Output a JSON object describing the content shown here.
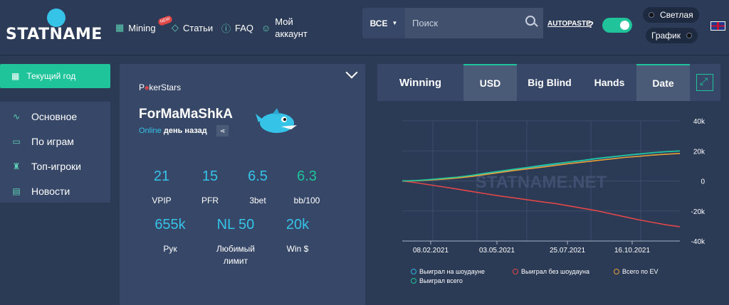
{
  "header": {
    "logo": "STATNAME",
    "nav": [
      {
        "label": "Mining",
        "icon": "grid-icon"
      },
      {
        "label": "Статьи",
        "icon": "diamond-icon"
      },
      {
        "label": "FAQ",
        "icon": "question-icon"
      },
      {
        "label": "Мой аккаунт",
        "icon": "user-icon"
      }
    ],
    "new_badge": "NEW",
    "room_select": "ВСЕ",
    "search_placeholder": "Поиск",
    "autopaste": "AUTOPASTE",
    "help": "?",
    "theme_label": "Светлая",
    "graph_label": "График"
  },
  "sidebar": {
    "year_button": "Текущий год",
    "items": [
      {
        "label": "Основное",
        "icon": "pulse-icon"
      },
      {
        "label": "По играм",
        "icon": "table-icon"
      },
      {
        "label": "Топ-игроки",
        "icon": "trophy-icon"
      },
      {
        "label": "Новости",
        "icon": "news-icon"
      }
    ]
  },
  "player": {
    "room_pre": "P",
    "room_post": "kerStars",
    "name": "ForMaMaShkA",
    "online": "Online",
    "last_seen": "день назад",
    "stats": [
      {
        "value": "21",
        "label": "VPIP"
      },
      {
        "value": "15",
        "label": "PFR"
      },
      {
        "value": "6.5",
        "label": "3bet"
      },
      {
        "value": "6.3",
        "label": "bb/100"
      },
      {
        "value": "655k",
        "label": "Рук"
      },
      {
        "value": "NL 50",
        "label": "Любимый лимит"
      },
      {
        "value": "20k",
        "label": "Win $"
      }
    ]
  },
  "chart_tabs": {
    "title": "Winning",
    "tabs": [
      "USD",
      "Big Blind",
      "Hands",
      "Date"
    ]
  },
  "chart_data": {
    "type": "line",
    "watermark": "STATNAME.NET",
    "x_labels": [
      "08.02.2021",
      "03.05.2021",
      "25.07.2021",
      "16.10.2021"
    ],
    "y_ticks": [
      "40k",
      "20k",
      "0",
      "-20k",
      "-40k"
    ],
    "ylim": [
      -40000,
      40000
    ],
    "series": [
      {
        "name": "Выиграл на шоудауне",
        "color": "#2fb3e0",
        "values": [
          0,
          200,
          800,
          1500,
          2300,
          3500,
          5000,
          6200,
          7600,
          8800,
          10000,
          11200,
          12500,
          13500,
          14800,
          15800,
          16900,
          17800,
          18700,
          19400,
          20000
        ]
      },
      {
        "name": "Выиграл без шоудауна",
        "color": "#e04848",
        "values": [
          0,
          -1200,
          -2600,
          -4000,
          -5500,
          -7000,
          -8500,
          -10000,
          -11200,
          -12500,
          -13800,
          -15000,
          -16600,
          -18200,
          -19800,
          -21800,
          -23800,
          -25800,
          -27500,
          -29200,
          -30500
        ]
      },
      {
        "name": "Всего по EV",
        "color": "#e8a13a",
        "values": [
          0,
          100,
          600,
          1200,
          2000,
          3000,
          4300,
          5600,
          6900,
          8000,
          9100,
          10300,
          11500,
          12500,
          13600,
          14600,
          15600,
          16400,
          17200,
          17800,
          18300
        ]
      },
      {
        "name": "Выиграл всего",
        "color": "#1fc49a",
        "values": [
          0,
          300,
          1000,
          1800,
          2600,
          3800,
          5200,
          6500,
          7800,
          9000,
          10300,
          11500,
          12600,
          13700,
          15000,
          16000,
          17000,
          18000,
          18800,
          19500,
          20000
        ]
      }
    ]
  }
}
